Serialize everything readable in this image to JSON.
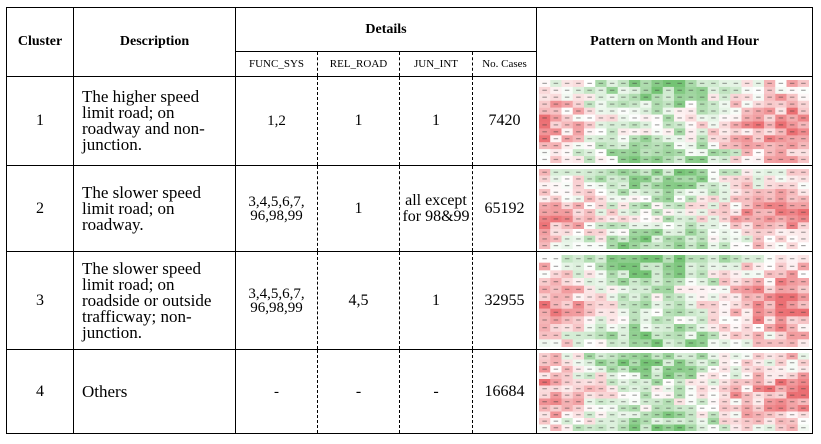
{
  "table": {
    "header": {
      "cluster": "Cluster",
      "description": "Description",
      "details": "Details",
      "pattern": "Pattern on Month and Hour",
      "sub": [
        "FUNC_SYS",
        "REL_ROAD",
        "JUN_INT",
        "No. Cases"
      ]
    },
    "rows": [
      {
        "cluster": "1",
        "description": "The higher speed limit road; on roadway and non-junction.",
        "func_sys": "1,2",
        "rel_road": "1",
        "jun_int": "1",
        "cases": "7420",
        "heatmap": "cluster-1-heatmap"
      },
      {
        "cluster": "2",
        "description": "The slower speed limit road; on roadway.",
        "func_sys": "3,4,5,6,7, 96,98,99",
        "rel_road": "1",
        "jun_int": "all except for 98&99",
        "cases": "65192",
        "heatmap": "cluster-2-heatmap"
      },
      {
        "cluster": "3",
        "description": "The slower speed limit road; on roadside or outside trafficway; non-junction.",
        "func_sys": "3,4,5,6,7, 96,98,99",
        "rel_road": "4,5",
        "jun_int": "1",
        "cases": "32955",
        "heatmap": "cluster-3-heatmap"
      },
      {
        "cluster": "4",
        "description": "Others",
        "func_sys": "-",
        "rel_road": "-",
        "jun_int": "-",
        "cases": "16684",
        "heatmap": "cluster-4-heatmap"
      }
    ]
  },
  "colors": {
    "high": "#5cb85c",
    "mid": "#ffffff",
    "low": "#e8555a"
  }
}
